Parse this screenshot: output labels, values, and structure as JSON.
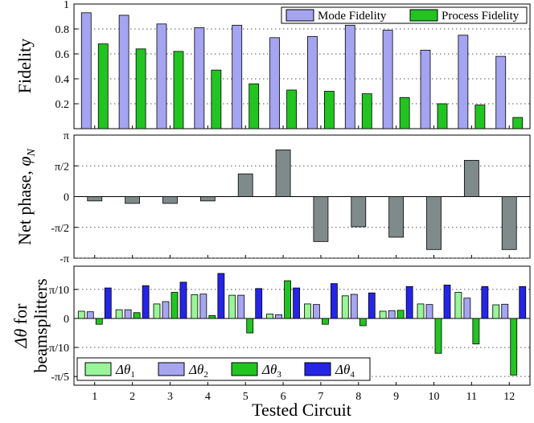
{
  "colors": {
    "mode": "#a4a4f0",
    "process": "#22c422",
    "phase": "#7f8b8b",
    "dt1": "#98f598",
    "dt2": "#a6a6f0",
    "dt3": "#22c422",
    "dt4": "#2525e8",
    "grid": "#555555"
  },
  "xlabel": "Tested Circuit",
  "chart_data": [
    {
      "type": "bar",
      "ylabel": "Fidelity",
      "ylim": [
        0,
        1
      ],
      "yticks": [
        {
          "v": 0.2,
          "label": "0.2"
        },
        {
          "v": 0.4,
          "label": "0.4"
        },
        {
          "v": 0.6,
          "label": "0.6"
        },
        {
          "v": 0.8,
          "label": "0.8"
        },
        {
          "v": 1.0,
          "label": "1"
        }
      ],
      "grid": "horizontal dotted",
      "legend_position": "top-right",
      "categories": [
        "1",
        "2",
        "3",
        "4",
        "5",
        "6",
        "7",
        "8",
        "9",
        "10",
        "11",
        "12"
      ],
      "series": [
        {
          "name": "Mode Fidelity",
          "color_key": "mode",
          "values": [
            0.93,
            0.91,
            0.84,
            0.81,
            0.83,
            0.73,
            0.74,
            0.83,
            0.79,
            0.63,
            0.75,
            0.58
          ]
        },
        {
          "name": "Process Fidelity",
          "color_key": "process",
          "values": [
            0.68,
            0.64,
            0.62,
            0.47,
            0.36,
            0.31,
            0.3,
            0.28,
            0.25,
            0.2,
            0.19,
            0.09
          ]
        }
      ]
    },
    {
      "type": "bar",
      "ylabel_main": "Net phase, ",
      "ylabel_sym": "φ",
      "ylabel_sub": "N",
      "ylim": [
        -1,
        1
      ],
      "unit": "π",
      "yticks": [
        {
          "v": -1,
          "label": "-π"
        },
        {
          "v": -0.5,
          "label": "-π/2"
        },
        {
          "v": 0,
          "label": "0"
        },
        {
          "v": 0.5,
          "label": "π/2"
        },
        {
          "v": 1,
          "label": "π"
        }
      ],
      "grid": "horizontal dotted",
      "categories": [
        "1",
        "2",
        "3",
        "4",
        "5",
        "6",
        "7",
        "8",
        "9",
        "10",
        "11",
        "12"
      ],
      "series": [
        {
          "name": "",
          "color_key": "phase",
          "values": [
            -0.07,
            -0.11,
            -0.11,
            -0.07,
            0.37,
            0.76,
            -0.73,
            -0.49,
            -0.66,
            -0.86,
            0.59,
            -0.86
          ]
        }
      ]
    },
    {
      "type": "bar",
      "ylabel_sym": "Δθ",
      "ylabel_rest": " for",
      "ylabel_line2": "beamsplitters",
      "ylim": [
        -0.23,
        0.18
      ],
      "unit": "π",
      "yticks": [
        {
          "v": -0.2,
          "label": "-π/5"
        },
        {
          "v": -0.1,
          "label": "-π/10"
        },
        {
          "v": 0,
          "label": "0"
        },
        {
          "v": 0.1,
          "label": "π/10"
        }
      ],
      "grid": "horizontal dotted",
      "legend_position": "bottom-left",
      "categories": [
        "1",
        "2",
        "3",
        "4",
        "5",
        "6",
        "7",
        "8",
        "9",
        "10",
        "11",
        "12"
      ],
      "series": [
        {
          "name": "Δθ",
          "sub": "1",
          "color_key": "dt1",
          "values": [
            0.025,
            0.03,
            0.05,
            0.082,
            0.08,
            0.015,
            0.05,
            0.078,
            0.025,
            0.05,
            0.09,
            0.047
          ]
        },
        {
          "name": "Δθ",
          "sub": "2",
          "color_key": "dt2",
          "values": [
            0.023,
            0.03,
            0.058,
            0.084,
            0.08,
            0.013,
            0.048,
            0.083,
            0.027,
            0.048,
            0.07,
            0.049
          ]
        },
        {
          "name": "Δθ",
          "sub": "3",
          "color_key": "dt3",
          "values": [
            -0.02,
            0.02,
            0.09,
            0.01,
            -0.05,
            0.13,
            -0.02,
            -0.025,
            0.028,
            -0.12,
            -0.088,
            -0.195
          ]
        },
        {
          "name": "Δθ",
          "sub": "4",
          "color_key": "dt4",
          "values": [
            0.105,
            0.113,
            0.125,
            0.155,
            0.103,
            0.105,
            0.12,
            0.088,
            0.11,
            0.115,
            0.11,
            0.11
          ]
        }
      ]
    }
  ]
}
